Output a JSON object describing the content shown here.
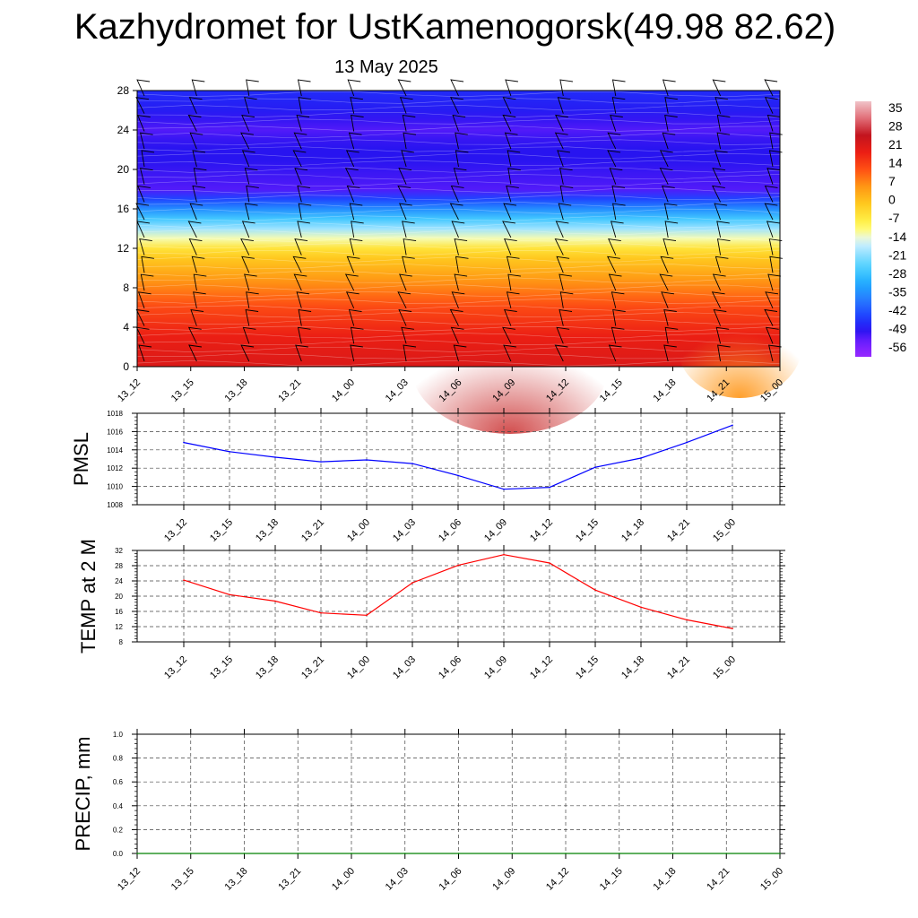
{
  "title": "Kazhydromet for UstKamenogorsk(49.98 82.62)",
  "subtitle": "13 May 2025",
  "times": [
    "13_12",
    "13_15",
    "13_18",
    "13_21",
    "14_00",
    "14_03",
    "14_06",
    "14_09",
    "14_12",
    "14_15",
    "14_18",
    "14_21",
    "15_00"
  ],
  "chart_data": [
    {
      "type": "heatmap",
      "title": "",
      "xlabel": "",
      "ylabel": "",
      "y_ticks": [
        0,
        4,
        8,
        12,
        16,
        20,
        24,
        28
      ],
      "ylim": [
        0,
        28
      ],
      "colorbar_labels": [
        "35",
        "28",
        "21",
        "14",
        "7",
        "0",
        "-7",
        "-14",
        "-21",
        "-28",
        "-35",
        "-42",
        "-49",
        "-56"
      ],
      "colorbar_range": [
        -63,
        42
      ],
      "temperature_profile": {
        "levels": [
          0,
          1,
          2,
          3,
          4,
          5,
          6,
          7,
          8,
          9,
          10,
          11,
          12,
          13,
          14,
          15,
          16,
          17,
          18,
          19,
          20,
          21,
          22,
          23,
          24,
          25,
          26,
          27,
          28
        ],
        "values": [
          24,
          23,
          22,
          21,
          19,
          17,
          15,
          12,
          9,
          6,
          3,
          0,
          -5,
          -13,
          -20,
          -28,
          -37,
          -46,
          -55,
          -54,
          -53,
          -52,
          -52,
          -53,
          -55,
          -53,
          -51,
          -50,
          -49
        ]
      },
      "wind_barbs": "present"
    },
    {
      "type": "line",
      "ylabel": "PMSL",
      "ylim": [
        1008,
        1018
      ],
      "y_ticks": [
        1008,
        1010,
        1012,
        1014,
        1016,
        1018
      ],
      "color": "#0000ff",
      "series": [
        {
          "values": [
            1014.8,
            1013.8,
            1013.2,
            1012.7,
            1012.9,
            1012.5,
            1011.2,
            1009.7,
            1009.9,
            1012.1,
            1013.1,
            1014.8,
            1016.7
          ]
        }
      ]
    },
    {
      "type": "line",
      "ylabel": "TEMP at 2 M",
      "ylim": [
        8,
        32
      ],
      "y_ticks": [
        8,
        12,
        16,
        20,
        24,
        28,
        32
      ],
      "color": "#ff0000",
      "series": [
        {
          "values": [
            24.2,
            20.4,
            18.7,
            15.6,
            15.0,
            23.5,
            28.1,
            30.9,
            28.7,
            21.6,
            17.1,
            13.8,
            11.5
          ]
        }
      ]
    },
    {
      "type": "line",
      "ylabel": "PRECIP, mm",
      "ylim": [
        0,
        1
      ],
      "y_ticks": [
        "0.0",
        "0.2",
        "0.4",
        "0.6",
        "0.8",
        "1.0"
      ],
      "color": "#008000",
      "series": [
        {
          "values": [
            0,
            0,
            0,
            0,
            0,
            0,
            0,
            0,
            0,
            0,
            0,
            0,
            0
          ]
        }
      ]
    }
  ]
}
